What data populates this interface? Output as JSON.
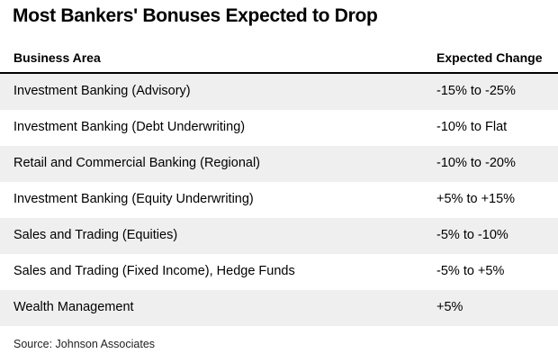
{
  "chart_data": {
    "type": "table",
    "title": "Most Bankers' Bonuses Expected to Drop",
    "columns": [
      "Business Area",
      "Expected Change"
    ],
    "rows": [
      [
        "Investment Banking (Advisory)",
        "-15% to -25%"
      ],
      [
        "Investment Banking (Debt Underwriting)",
        "-10% to Flat"
      ],
      [
        "Retail and Commercial Banking (Regional)",
        "-10% to -20%"
      ],
      [
        "Investment Banking (Equity Underwriting)",
        "+5% to +15%"
      ],
      [
        "Sales and Trading (Equities)",
        "-5% to -10%"
      ],
      [
        "Sales and Trading (Fixed Income), Hedge Funds",
        "-5% to +5%"
      ],
      [
        "Wealth Management",
        "+5%"
      ]
    ],
    "source": "Source: Johnson Associates"
  },
  "colors": {
    "shade": "#efefef",
    "rule": "#000000"
  }
}
